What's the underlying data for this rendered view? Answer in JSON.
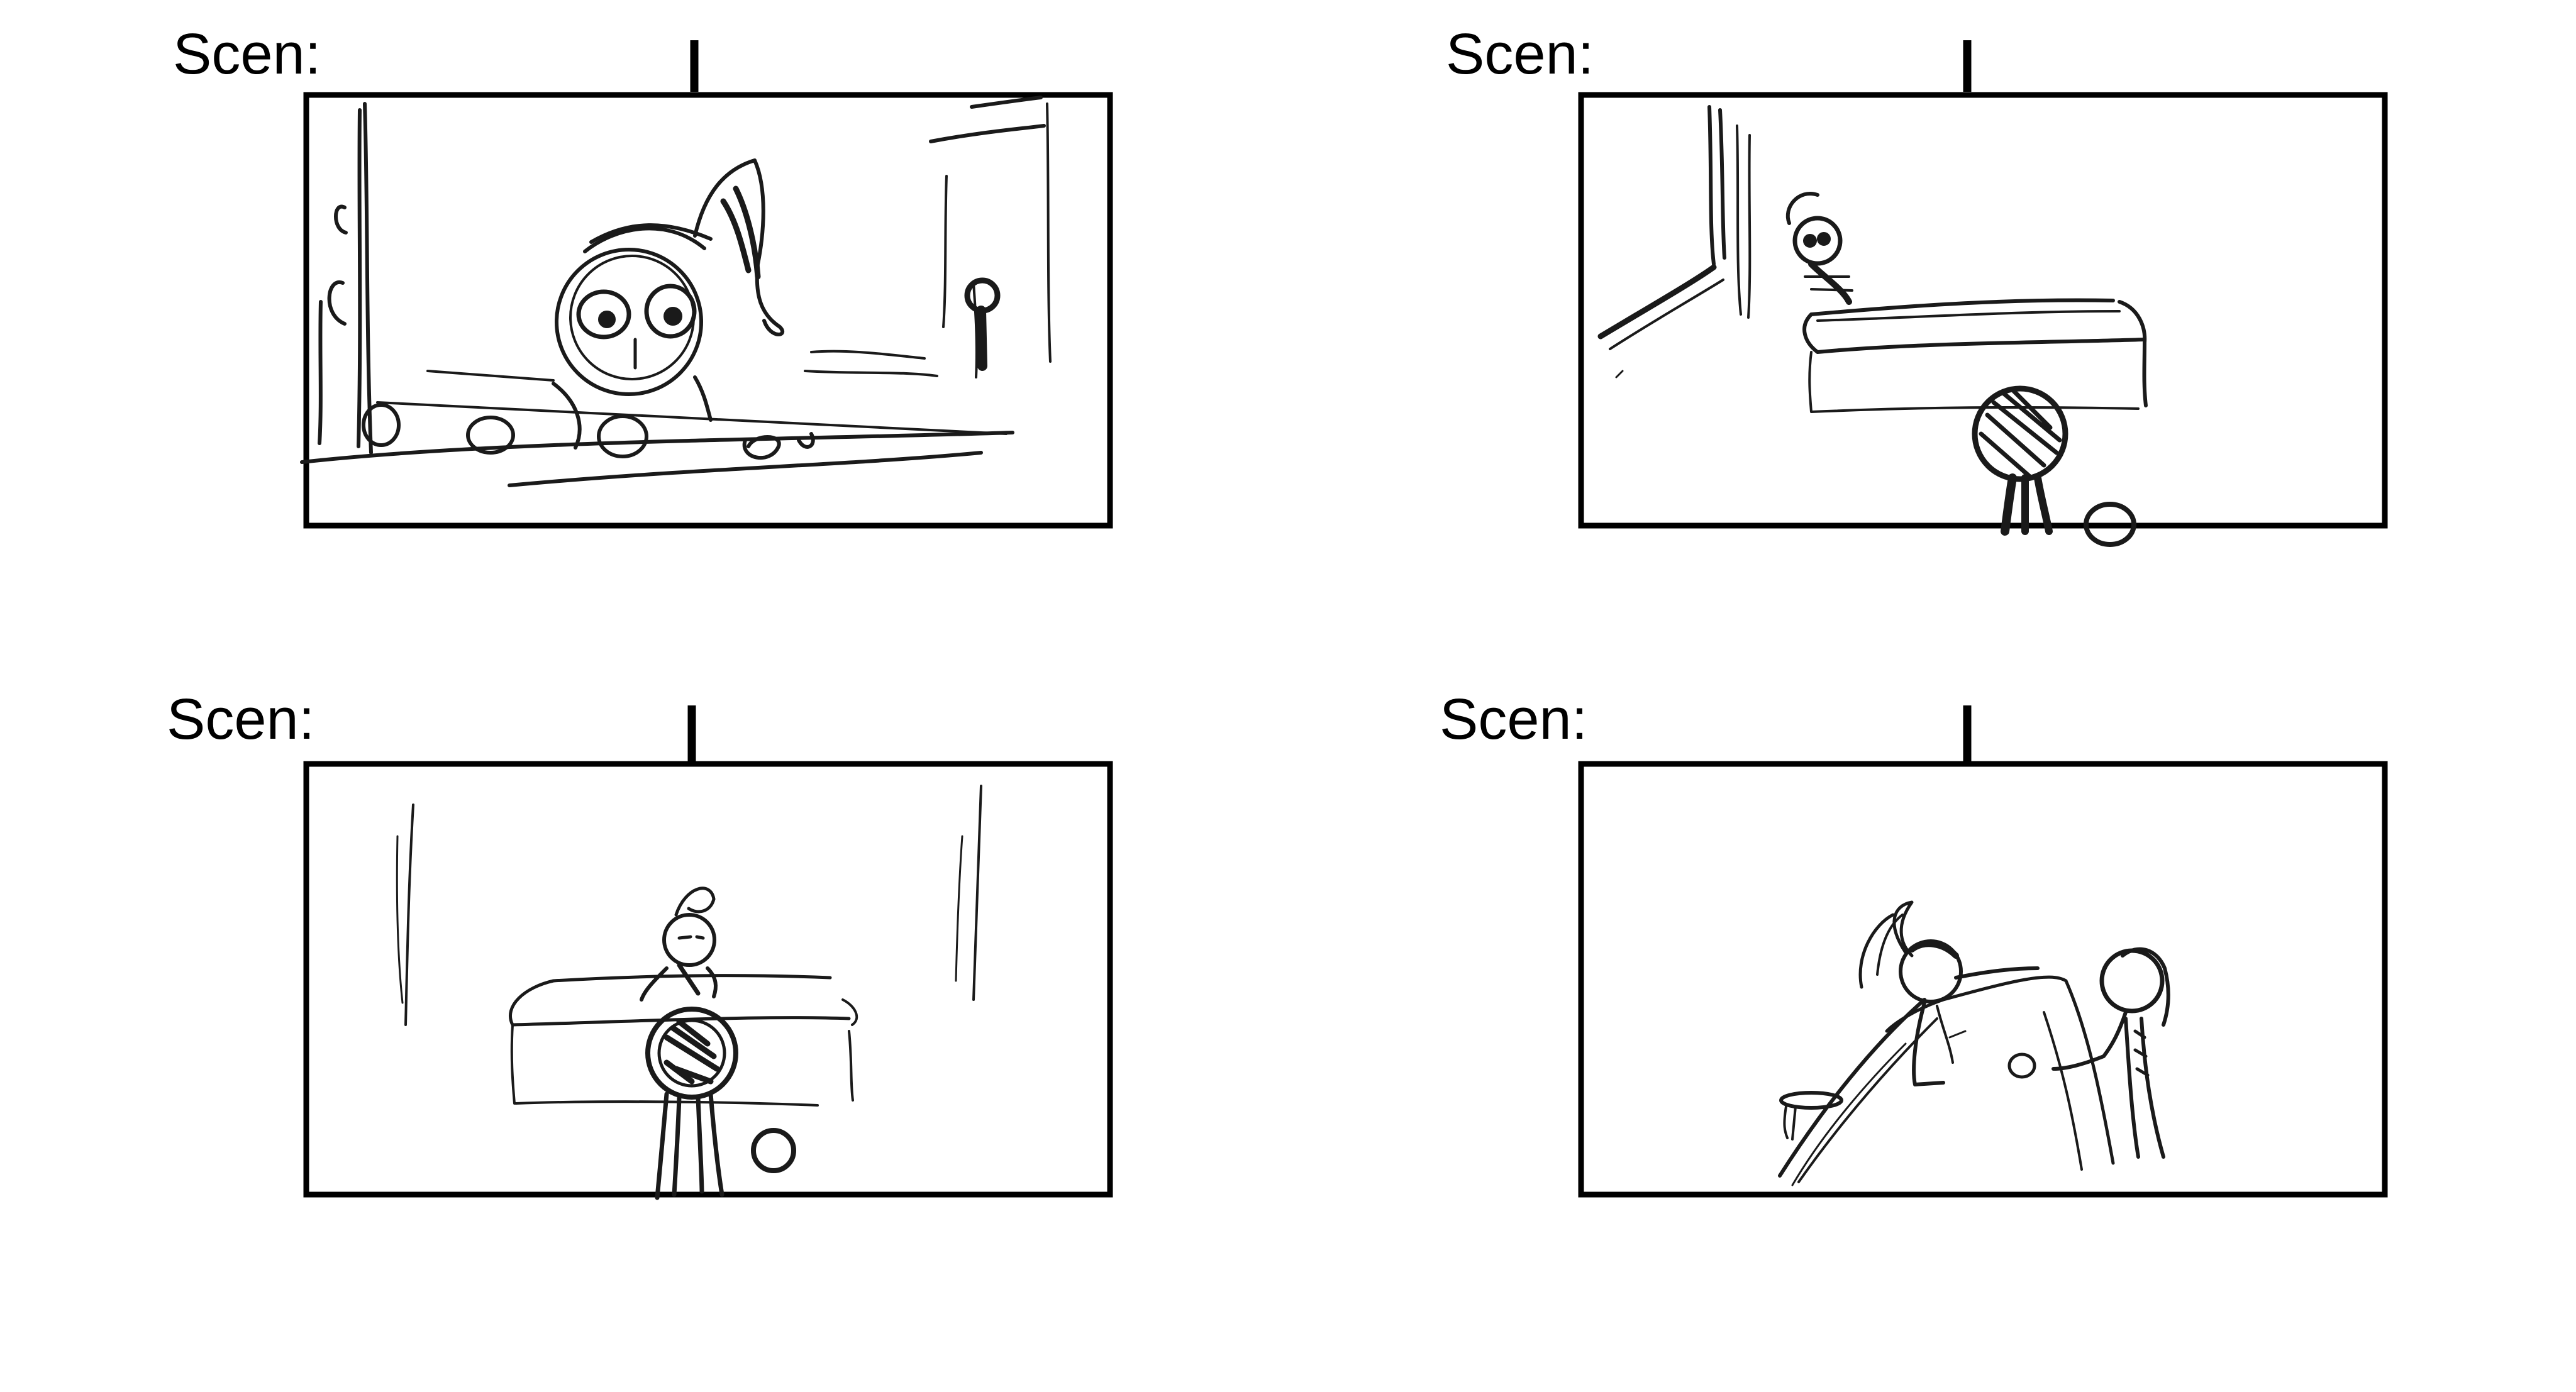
{
  "panels": [
    {
      "label": "Scen:",
      "scene": "close-up of kitten peeking over table edge"
    },
    {
      "label": "Scen:",
      "scene": "kitten on bed, person watching from foreground"
    },
    {
      "label": "Scen:",
      "scene": "wide shot: kitten behind bed, person with ball in foreground"
    },
    {
      "label": "Scen:",
      "scene": "kitten reaching toward person"
    }
  ],
  "colors": {
    "ink": "#1a1a1a",
    "frame": "#000000",
    "paper": "#ffffff"
  }
}
